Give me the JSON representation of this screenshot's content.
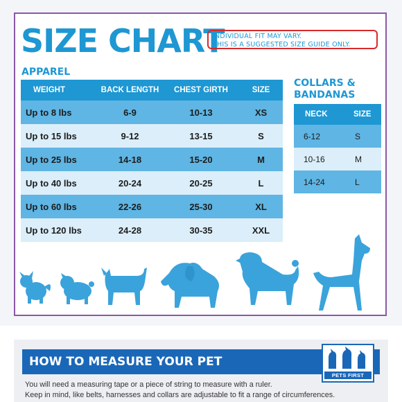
{
  "title": "SIZE CHART",
  "fit_note": {
    "line1": "INDIVIDUAL FIT MAY VARY.",
    "line2": "THIS IS A SUGGESTED SIZE GUIDE ONLY."
  },
  "apparel": {
    "heading": "APPAREL",
    "columns": [
      "WEIGHT",
      "BACK LENGTH",
      "CHEST GIRTH",
      "SIZE"
    ],
    "rows": [
      [
        "Up to 8 lbs",
        "6-9",
        "10-13",
        "XS"
      ],
      [
        "Up to 15 lbs",
        "9-12",
        "13-15",
        "S"
      ],
      [
        "Up to 25 lbs",
        "14-18",
        "15-20",
        "M"
      ],
      [
        "Up to 40 lbs",
        "20-24",
        "20-25",
        "L"
      ],
      [
        "Up to 60 lbs",
        "22-26",
        "25-30",
        "XL"
      ],
      [
        "Up to 120 lbs",
        "24-28",
        "30-35",
        "XXL"
      ]
    ]
  },
  "collars": {
    "heading_line1": "COLLARS &",
    "heading_line2": "BANDANAS",
    "columns": [
      "NECK",
      "SIZE"
    ],
    "rows": [
      [
        "6-12",
        "S"
      ],
      [
        "10-16",
        "M"
      ],
      [
        "14-24",
        "L"
      ]
    ]
  },
  "dog_silhouettes": [
    "small-dog-icon",
    "pug-icon",
    "terrier-icon",
    "spaniel-icon",
    "fluffy-dog-icon",
    "great-dane-icon"
  ],
  "measure": {
    "title": "HOW TO MEASURE YOUR PET",
    "logo_text": "PETS FIRST",
    "line1": "You will need a measuring tape or a piece of string to measure with a ruler.",
    "line2": "Keep in mind, like belts, harnesses and collars are adjustable to fit a range of circumferences."
  },
  "colors": {
    "accent": "#1e97d3",
    "row_dark": "#5fb5e3",
    "row_light": "#dbeefa",
    "frame": "#8a57a6",
    "note_border": "#d62a2a",
    "banner": "#1a67b8"
  }
}
